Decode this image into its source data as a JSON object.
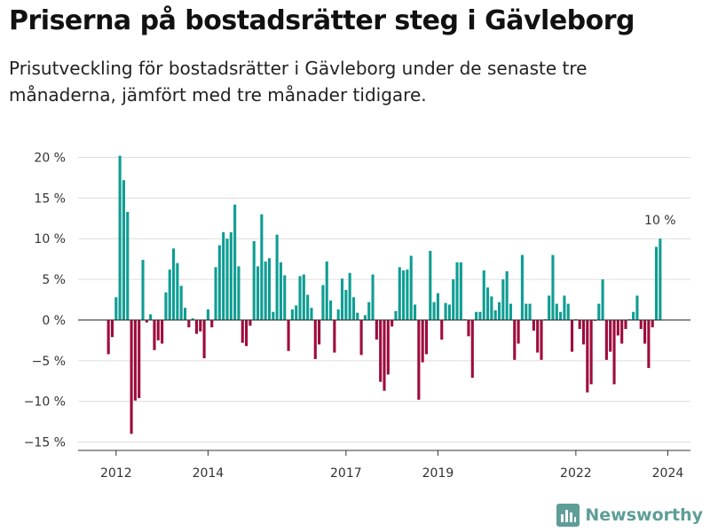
{
  "header": {
    "title": "Priserna på bostadsrätter steg i Gävleborg",
    "subtitle": "Prisutveckling för bostadsrätter i Gävleborg under de senaste tre månaderna, jämfört med tre månader tidigare."
  },
  "logo": {
    "text": "Newsworthy",
    "icon": "bar-chart-icon"
  },
  "colors": {
    "positive": "#0f9d93",
    "negative": "#9e0b3c",
    "grid": "#dddddd",
    "zero_line": "#333333"
  },
  "chart_data": {
    "type": "bar",
    "title": "",
    "xlabel": "",
    "ylabel": "",
    "ylim": [
      -17,
      22
    ],
    "y_ticks": [
      20,
      15,
      10,
      5,
      0,
      -5,
      -10,
      -15
    ],
    "y_tick_labels": [
      "20 %",
      "15 %",
      "10 %",
      "5 %",
      "0 %",
      "−5 %",
      "−10 %",
      "−15 %"
    ],
    "x_ticks": [
      "2012",
      "2014",
      "2017",
      "2019",
      "2022",
      "2024"
    ],
    "x_start": "2011-11",
    "annotation": {
      "text": "10 %",
      "target": "last"
    },
    "values": [
      -4.2,
      -2.1,
      2.8,
      20.2,
      17.2,
      13.3,
      -14.0,
      -9.9,
      -9.6,
      7.4,
      -0.3,
      0.7,
      -3.7,
      -2.5,
      -2.9,
      3.4,
      6.2,
      8.8,
      7.0,
      4.2,
      1.5,
      -0.9,
      0.2,
      -1.7,
      -1.4,
      -4.7,
      1.3,
      -0.9,
      6.5,
      9.2,
      10.8,
      10.0,
      10.8,
      14.2,
      6.6,
      -2.8,
      -3.2,
      -0.7,
      9.7,
      6.6,
      13.0,
      7.2,
      7.6,
      1.0,
      10.5,
      7.1,
      5.5,
      -3.8,
      1.3,
      1.8,
      5.4,
      5.6,
      3.1,
      1.5,
      -4.8,
      -3.0,
      4.3,
      7.2,
      2.4,
      -4.0,
      1.3,
      5.1,
      3.7,
      5.8,
      2.8,
      0.9,
      -4.3,
      0.6,
      2.2,
      5.6,
      -2.4,
      -7.6,
      -8.7,
      -6.7,
      -0.8,
      1.1,
      6.5,
      6.1,
      6.2,
      7.9,
      1.9,
      -9.8,
      -5.2,
      -4.2,
      8.5,
      2.2,
      3.3,
      -2.4,
      2.1,
      1.9,
      5.0,
      7.1,
      7.1,
      0.1,
      -2.0,
      -7.1,
      1.0,
      1.0,
      6.1,
      4.0,
      2.9,
      1.2,
      2.2,
      5.0,
      6.0,
      2.0,
      -4.9,
      -2.9,
      8.0,
      2.0,
      2.0,
      -1.3,
      -4.0,
      -4.9,
      0.1,
      3.0,
      8.0,
      2.0,
      1.0,
      3.0,
      2.0,
      -3.9,
      0.1,
      -1.1,
      -3.0,
      -8.9,
      -7.9,
      -0.1,
      2.0,
      5.0,
      -4.9,
      -3.9,
      -7.9,
      -1.9,
      -2.9,
      -1.1,
      0.1,
      1.0,
      3.0,
      -1.1,
      -2.9,
      -5.9,
      -0.9,
      9.0,
      10.0
    ]
  }
}
